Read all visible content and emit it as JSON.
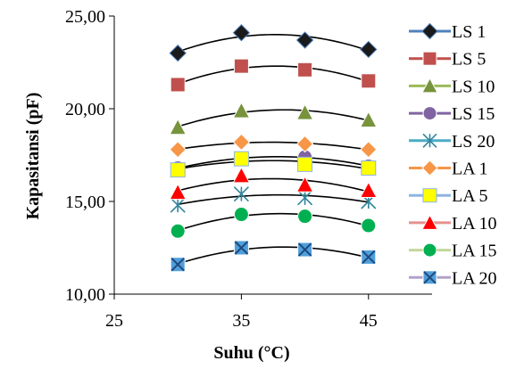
{
  "chart_data": {
    "type": "scatter",
    "title": "",
    "xlabel": "Suhu (°C)",
    "ylabel": "Kapasitansi (pF)",
    "xlim": [
      25,
      50
    ],
    "ylim": [
      10,
      25
    ],
    "xticks": [
      25,
      35,
      45
    ],
    "yticks": [
      10,
      15,
      20,
      25
    ],
    "ytick_labels": [
      "10,00",
      "15,00",
      "20,00",
      "25,00"
    ],
    "x": [
      30,
      35,
      40,
      45
    ],
    "grid": false,
    "legend_position": "right",
    "trendline": "polynomial order 2",
    "series": [
      {
        "name": "LS 1",
        "marker": "diamond",
        "line_color": "#4f81bd",
        "fill": "#1a1a1a",
        "values": [
          23.0,
          24.1,
          23.7,
          23.2
        ]
      },
      {
        "name": "LS 5",
        "marker": "square",
        "line_color": "#c0504d",
        "fill": "#c0504d",
        "values": [
          21.3,
          22.3,
          22.1,
          21.5
        ]
      },
      {
        "name": "LS 10",
        "marker": "triangle",
        "line_color": "#9bbb59",
        "fill": "#77933c",
        "values": [
          19.0,
          19.9,
          19.8,
          19.4
        ]
      },
      {
        "name": "LS 15",
        "marker": "circle",
        "line_color": "#8064a2",
        "fill": "#8064a2",
        "values": [
          16.8,
          17.3,
          17.4,
          16.9
        ]
      },
      {
        "name": "LS 20",
        "marker": "star",
        "line_color": "#4bacc6",
        "fill": "#31859c",
        "values": [
          14.8,
          15.4,
          15.2,
          15.0
        ]
      },
      {
        "name": "LA 1",
        "marker": "diamond",
        "line_color": "#f79646",
        "fill": "#f79646",
        "values": [
          17.8,
          18.2,
          18.1,
          17.8
        ]
      },
      {
        "name": "LA 5",
        "marker": "square",
        "line_color": "#8eb4e3",
        "fill": "#ffff00",
        "values": [
          16.7,
          17.3,
          17.0,
          16.8
        ]
      },
      {
        "name": "LA 10",
        "marker": "triangle",
        "line_color": "#e6928f",
        "fill": "#ff0000",
        "values": [
          15.5,
          16.4,
          15.9,
          15.6
        ]
      },
      {
        "name": "LA 15",
        "marker": "circle",
        "line_color": "#c3d69b",
        "fill": "#00b050",
        "values": [
          13.4,
          14.3,
          14.2,
          13.7
        ]
      },
      {
        "name": "LA 20",
        "marker": "square-x",
        "line_color": "#b3a2c7",
        "fill": "#4f9fdb",
        "values": [
          11.6,
          12.5,
          12.4,
          12.0
        ]
      }
    ]
  }
}
